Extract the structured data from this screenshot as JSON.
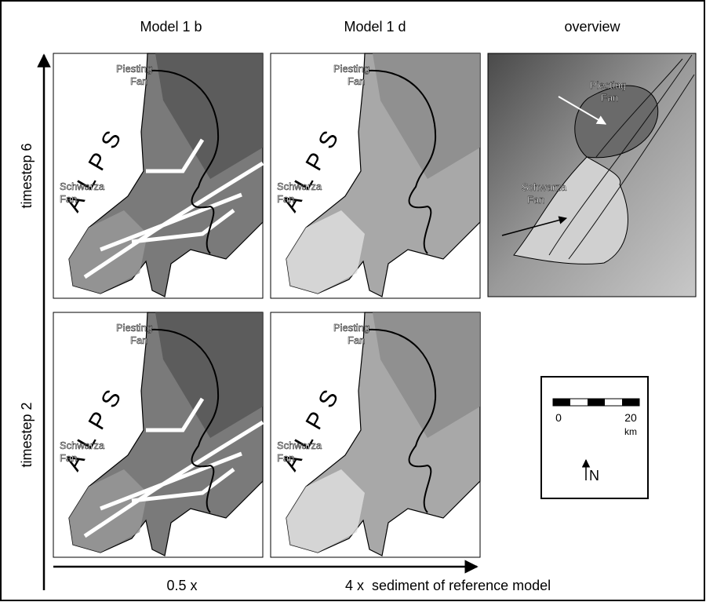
{
  "columns": [
    "Model 1 b",
    "Model 1 d",
    "overview"
  ],
  "rows": [
    "timestep 6",
    "timestep 2"
  ],
  "panels": [
    {
      "alps": "ALPS",
      "piesting": [
        "Piesting",
        "Fan"
      ],
      "schwarza": [
        "Schwarza",
        "Fan"
      ]
    },
    {
      "alps": "ALPS",
      "piesting": [
        "Piesting",
        "Fan"
      ],
      "schwarza": [
        "Schwarza",
        "Fan"
      ]
    },
    {
      "alps": "ALPS",
      "piesting": [
        "Piesting",
        "Fan"
      ],
      "schwarza": [
        "Schwarza",
        "Fan"
      ]
    },
    {
      "alps": "ALPS",
      "piesting": [
        "Piesting",
        "Fan"
      ],
      "schwarza": [
        "Schwarza",
        "Fan"
      ]
    }
  ],
  "overview": {
    "piesting": [
      "Piesting",
      "Fan"
    ],
    "schwarza": [
      "Schwarza",
      "Fan"
    ]
  },
  "scale": {
    "start": "0",
    "end": "20",
    "unit": "km",
    "north": "N"
  },
  "x_axis": {
    "left": "0.5 x",
    "right": "4 x  sediment of reference model"
  }
}
